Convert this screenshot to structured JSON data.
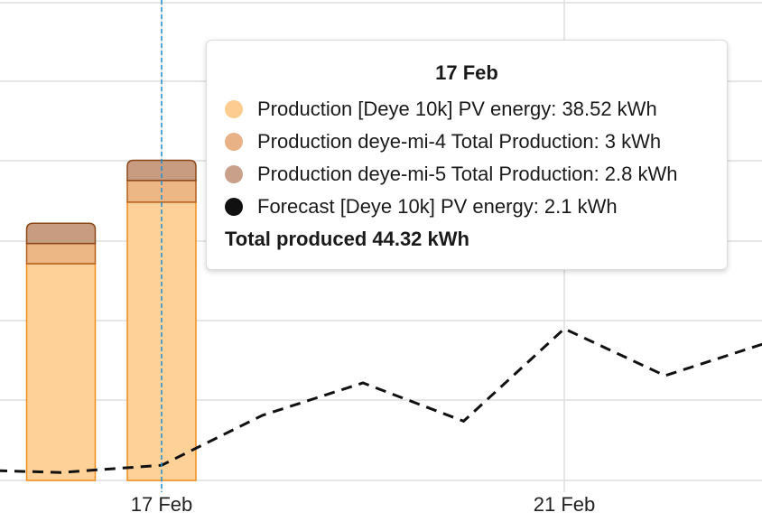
{
  "chart_data": {
    "type": "bar",
    "x_axis": {
      "type": "date",
      "tick_labels": [
        "17 Feb",
        "21 Feb"
      ]
    },
    "y_axis": {
      "range_kWh": [
        0,
        44.32
      ],
      "tick_labels_visible": false
    },
    "grid": true,
    "stacked_bars": [
      {
        "date": "16 Feb",
        "series_values": {
          "Production [Deye 10k] PV energy": 30.0,
          "Production deye-mi-4 Total Production": 2.8,
          "Production deye-mi-5 Total Production": 2.8
        }
      },
      {
        "date": "17 Feb",
        "series_values": {
          "Production [Deye 10k] PV energy": 38.52,
          "Production deye-mi-4 Total Production": 3,
          "Production deye-mi-5 Total Production": 2.8
        }
      }
    ],
    "forecast_line": {
      "name": "Forecast [Deye 10k] PV energy",
      "style": "dashed",
      "points": [
        {
          "date": "15 Feb",
          "value": 1.5
        },
        {
          "date": "16 Feb",
          "value": 1.1
        },
        {
          "date": "17 Feb",
          "value": 2.1
        },
        {
          "date": "18 Feb",
          "value": 9.0
        },
        {
          "date": "19 Feb",
          "value": 13.5
        },
        {
          "date": "20 Feb",
          "value": 8.2
        },
        {
          "date": "21 Feb",
          "value": 21.0
        },
        {
          "date": "22 Feb",
          "value": 14.5
        },
        {
          "date": "23 Feb",
          "value": 19.0
        }
      ]
    },
    "cursor_date": "17 Feb"
  },
  "colors": {
    "deye10k_fill": "#fdd197",
    "deye10k_stroke": "#f08c1a",
    "mi4_fill": "#edb685",
    "mi4_stroke": "#b45f1e",
    "mi5_fill": "#c89c80",
    "mi5_stroke": "#8a4616",
    "forecast": "#111111",
    "cursor": "#1f8fd6",
    "grid": "#dedede"
  },
  "tooltip": {
    "title": "17 Feb",
    "rows": [
      {
        "label": "Production [Deye 10k] PV energy: 38.52 kWh",
        "color": "#fdcc90"
      },
      {
        "label": "Production deye-mi-4 Total Production: 3 kWh",
        "color": "#e8b286"
      },
      {
        "label": "Production deye-mi-5 Total Production: 2.8 kWh",
        "color": "#c9a08a"
      },
      {
        "label": "Forecast [Deye 10k] PV energy: 2.1 kWh",
        "color": "#111111"
      }
    ],
    "total": "Total produced 44.32 kWh"
  }
}
